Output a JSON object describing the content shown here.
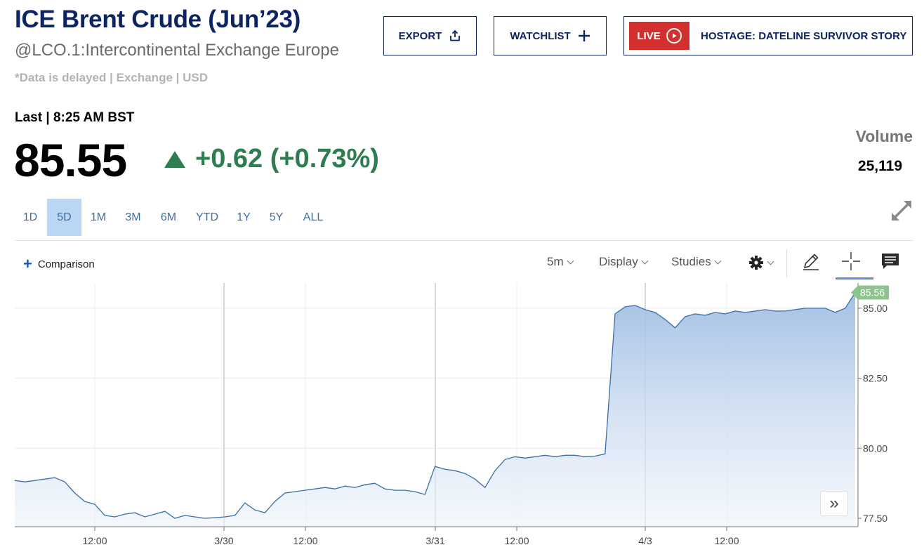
{
  "header": {
    "title": "ICE Brent Crude (Jun’23)",
    "subtitle": "@LCO.1:Intercontinental Exchange Europe",
    "delayed_note": "*Data is delayed | Exchange | USD"
  },
  "buttons": {
    "export_label": "EXPORT",
    "watchlist_label": "WATCHLIST",
    "live_badge": "LIVE",
    "live_story": "HOSTAGE: DATELINE SURVIVOR STORY"
  },
  "quote": {
    "last_label": "Last | 8:25 AM BST",
    "price": "85.55",
    "change": "+0.62 (+0.73%)",
    "change_color": "#2e7d51",
    "volume_label": "Volume",
    "volume_value": "25,119"
  },
  "ranges": [
    {
      "label": "1D",
      "active": false
    },
    {
      "label": "5D",
      "active": true
    },
    {
      "label": "1M",
      "active": false
    },
    {
      "label": "3M",
      "active": false
    },
    {
      "label": "6M",
      "active": false
    },
    {
      "label": "YTD",
      "active": false
    },
    {
      "label": "1Y",
      "active": false
    },
    {
      "label": "5Y",
      "active": false
    },
    {
      "label": "ALL",
      "active": false
    }
  ],
  "toolbar": {
    "comparison_label": "Comparison",
    "interval_label": "5m",
    "display_label": "Display",
    "studies_label": "Studies",
    "icons": [
      "settings-gear-icon",
      "pencil-draw-icon",
      "crosshair-icon",
      "comment-icon",
      "expand-icon"
    ]
  },
  "chart_data": {
    "type": "area",
    "color": "#3a6fa8",
    "last_value_label": "85.56",
    "last_value_color": "#8bc58b",
    "y_ticks": [
      "85.00",
      "82.50",
      "80.00",
      "77.50"
    ],
    "ylim": [
      77.2,
      85.9
    ],
    "x_tick_labels": [
      "12:00",
      "3/30",
      "12:00",
      "3/31",
      "12:00",
      "4/3",
      "12:00"
    ],
    "grid": true,
    "series": [
      {
        "values": [
          78.85,
          78.8,
          78.85,
          78.9,
          78.95,
          78.8,
          78.4,
          78.1,
          78.0,
          77.6,
          77.55,
          77.65,
          77.7,
          77.55,
          77.65,
          77.75,
          77.5,
          77.6,
          77.55,
          77.5,
          77.52,
          77.55,
          77.6,
          78.05,
          77.8,
          77.7,
          78.1,
          78.4,
          78.45,
          78.5,
          78.55,
          78.6,
          78.55,
          78.65,
          78.6,
          78.7,
          78.75,
          78.55,
          78.5,
          78.5,
          78.45,
          78.35,
          79.35,
          79.25,
          79.2,
          79.1,
          78.9,
          78.6,
          79.2,
          79.6,
          79.7,
          79.65,
          79.7,
          79.75,
          79.7,
          79.75,
          79.75,
          79.7,
          79.72,
          79.8,
          84.8,
          85.05,
          85.1,
          84.95,
          84.85,
          84.6,
          84.3,
          84.7,
          84.8,
          84.75,
          84.85,
          84.8,
          84.9,
          84.85,
          84.9,
          84.95,
          84.9,
          84.9,
          84.95,
          85.0,
          85.0,
          85.0,
          84.85,
          85.0,
          85.56
        ]
      }
    ]
  }
}
